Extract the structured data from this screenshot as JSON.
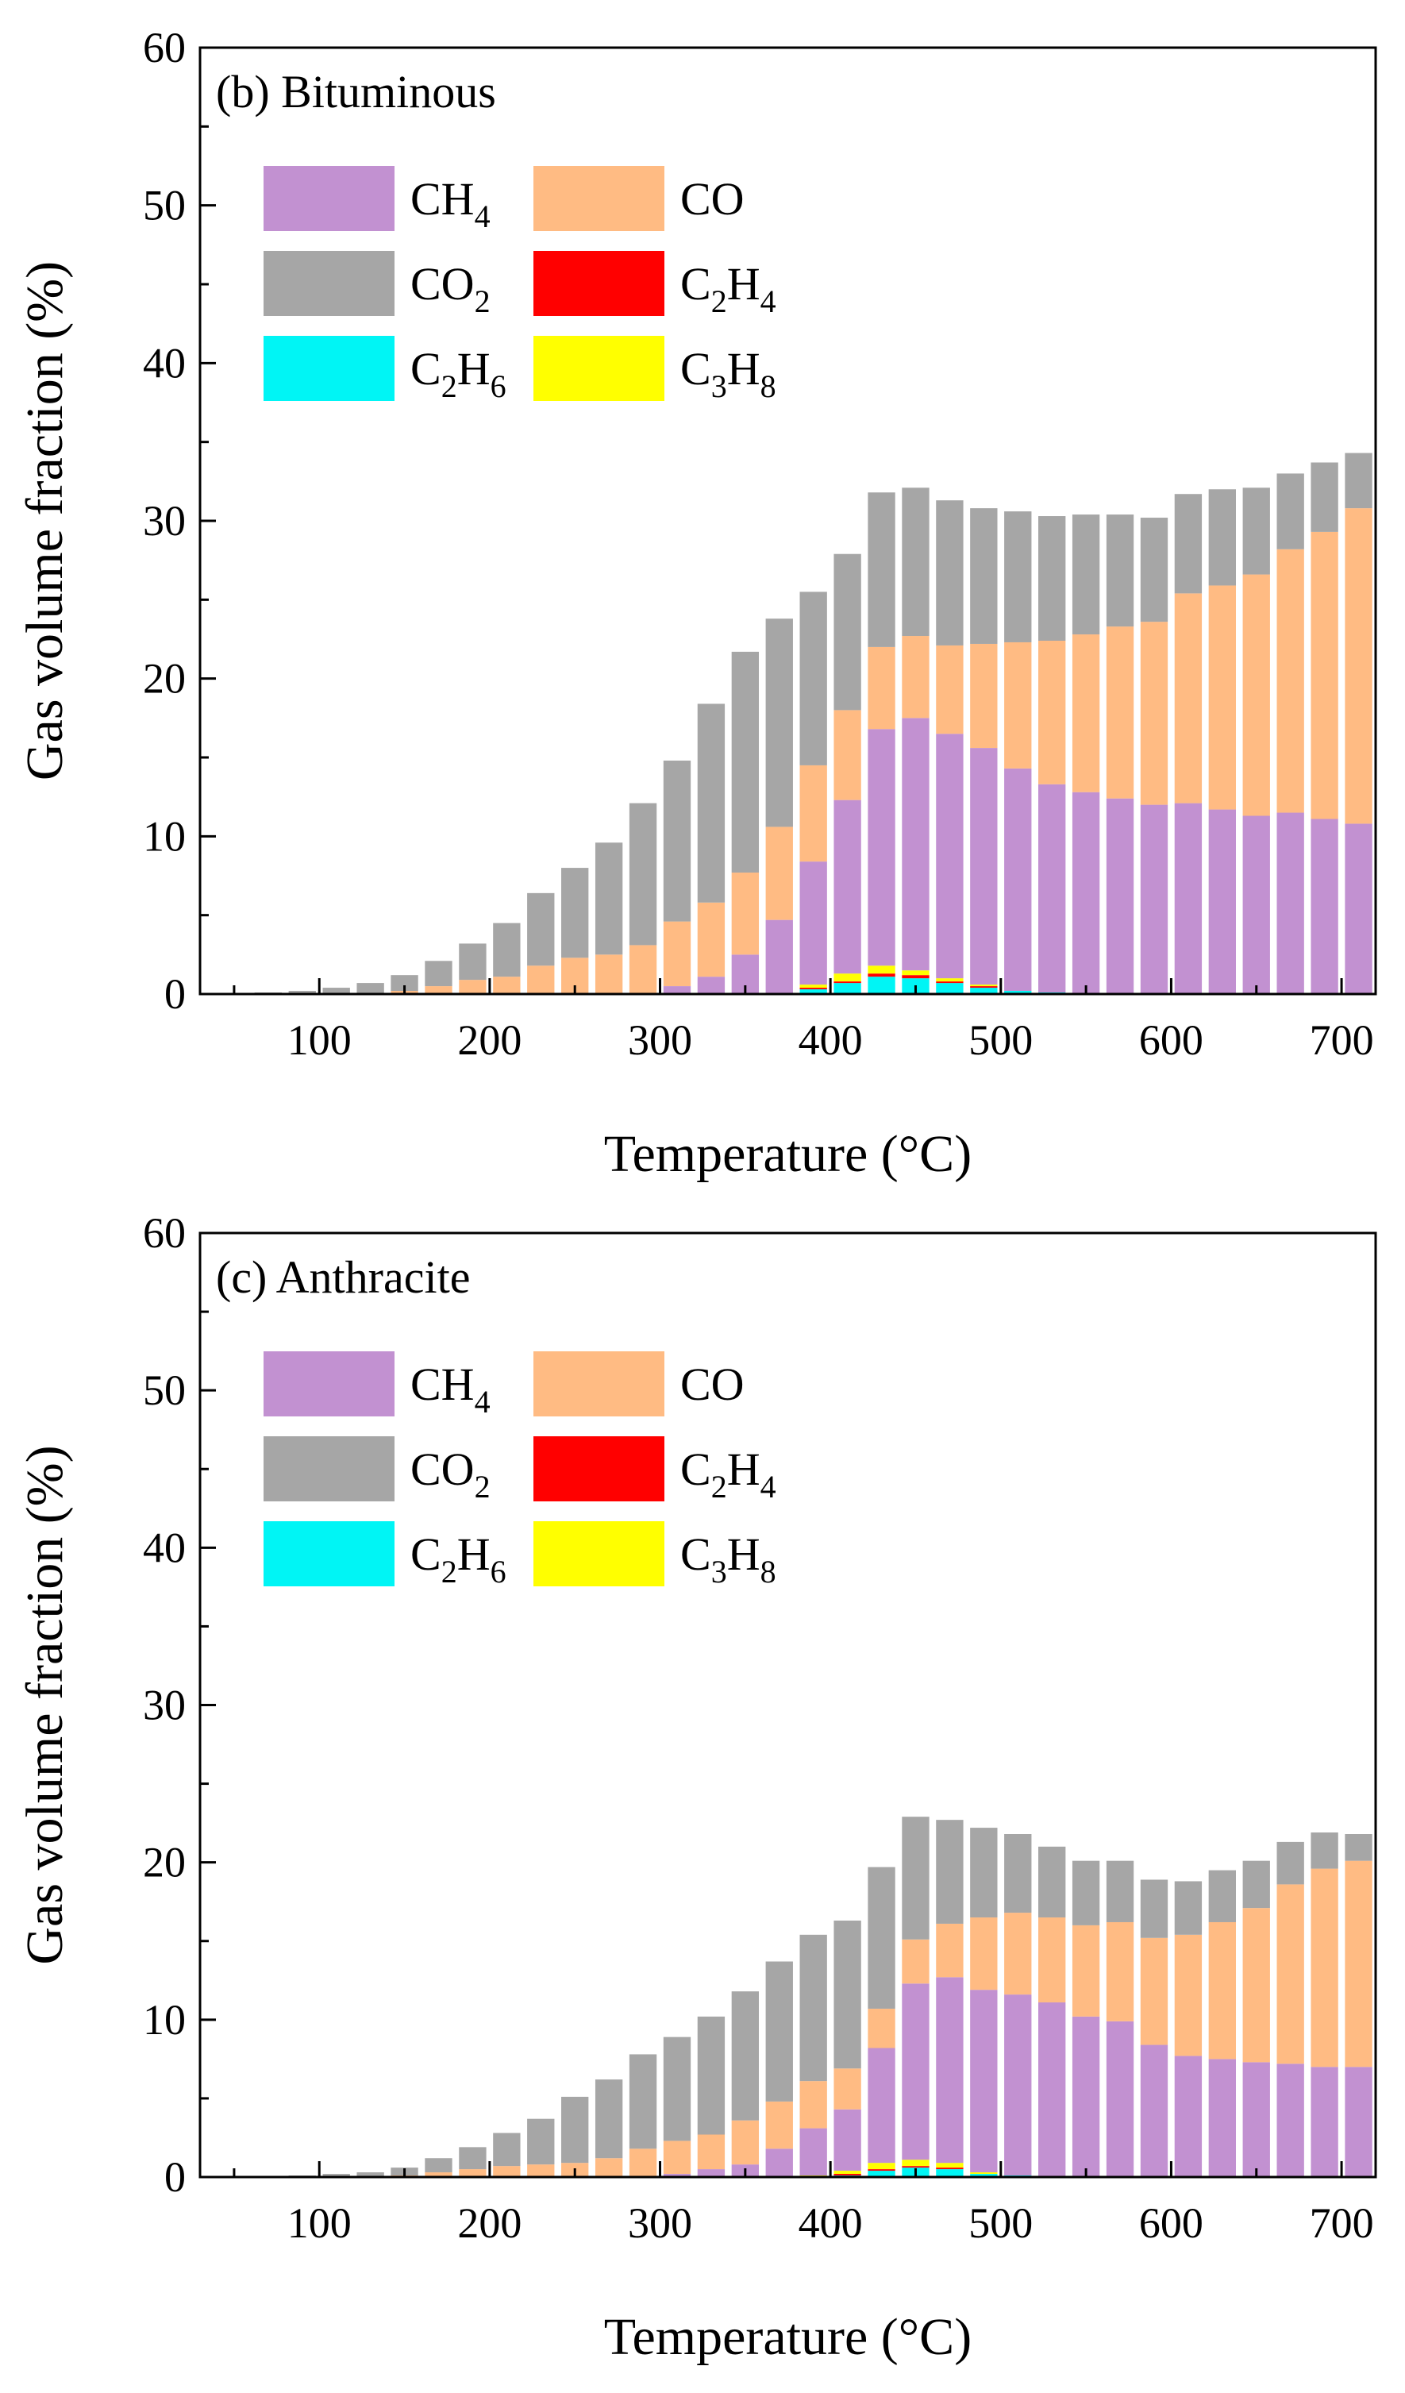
{
  "colors": {
    "CH4": "#c291d1",
    "CO": "#ffbb83",
    "CO2": "#a6a6a6",
    "C2H4": "#ff0000",
    "C2H6": "#00f5f5",
    "C3H8": "#ffff00"
  },
  "legend": {
    "items": [
      {
        "key": "CH4",
        "main": "CH",
        "sub": "4",
        "tail": ""
      },
      {
        "key": "CO",
        "main": "CO",
        "sub": "",
        "tail": ""
      },
      {
        "key": "CO2",
        "main": "CO",
        "sub": "2",
        "tail": ""
      },
      {
        "key": "C2H4",
        "main": "C",
        "sub": "2",
        "tail": "H",
        "sub2": "4"
      },
      {
        "key": "C2H6",
        "main": "C",
        "sub": "2",
        "tail": "H",
        "sub2": "6"
      },
      {
        "key": "C3H8",
        "main": "C",
        "sub": "3",
        "tail": "H",
        "sub2": "8"
      }
    ]
  },
  "chart_data": [
    {
      "type": "bar",
      "stacked": true,
      "title": "(b) Bituminous",
      "xlabel": "Temperature (°C)",
      "ylabel": "Gas volume fraction (%)",
      "xlim": [
        30,
        720
      ],
      "ylim": [
        0,
        60
      ],
      "xticks": [
        100,
        200,
        300,
        400,
        500,
        600,
        700
      ],
      "yticks": [
        0,
        10,
        20,
        30,
        40,
        50,
        60
      ],
      "x": [
        70,
        90,
        110,
        130,
        150,
        170,
        190,
        210,
        230,
        250,
        270,
        290,
        310,
        330,
        350,
        370,
        390,
        410,
        430,
        450,
        470,
        490,
        510,
        530,
        550,
        570,
        590,
        610,
        630,
        650,
        670,
        690,
        710
      ],
      "series": [
        {
          "name": "C2H6",
          "values": [
            0,
            0,
            0,
            0,
            0,
            0,
            0,
            0,
            0,
            0,
            0,
            0,
            0,
            0,
            0,
            0,
            0.3,
            0.7,
            1.1,
            1.0,
            0.7,
            0.4,
            0.2,
            0.1,
            0,
            0,
            0,
            0,
            0,
            0,
            0,
            0,
            0
          ]
        },
        {
          "name": "C2H4",
          "values": [
            0,
            0,
            0,
            0,
            0,
            0,
            0,
            0,
            0,
            0,
            0,
            0,
            0,
            0,
            0,
            0,
            0.1,
            0.1,
            0.2,
            0.2,
            0.1,
            0.1,
            0,
            0,
            0,
            0,
            0,
            0,
            0,
            0,
            0,
            0,
            0
          ]
        },
        {
          "name": "C3H8",
          "values": [
            0,
            0,
            0,
            0,
            0,
            0,
            0,
            0,
            0,
            0,
            0,
            0,
            0,
            0,
            0,
            0,
            0.2,
            0.5,
            0.5,
            0.3,
            0.2,
            0.1,
            0,
            0,
            0,
            0,
            0,
            0,
            0,
            0,
            0,
            0,
            0
          ]
        },
        {
          "name": "CH4",
          "values": [
            0,
            0,
            0,
            0,
            0,
            0,
            0,
            0,
            0,
            0,
            0,
            0,
            0.5,
            1.1,
            2.5,
            4.7,
            7.8,
            11.0,
            15.0,
            16.0,
            15.5,
            15.0,
            14.1,
            13.2,
            12.8,
            12.4,
            12.0,
            12.1,
            11.7,
            11.3,
            11.5,
            11.1,
            10.8
          ]
        },
        {
          "name": "CO",
          "values": [
            0,
            0,
            0,
            0,
            0.2,
            0.5,
            0.9,
            1.1,
            1.8,
            2.3,
            2.5,
            3.1,
            4.1,
            4.7,
            5.2,
            5.9,
            6.1,
            5.7,
            5.2,
            5.2,
            5.6,
            6.6,
            8.0,
            9.1,
            10.0,
            10.9,
            11.6,
            13.3,
            14.2,
            15.3,
            16.7,
            18.2,
            20.0
          ]
        },
        {
          "name": "CO2",
          "values": [
            0.1,
            0.2,
            0.4,
            0.7,
            1.0,
            1.6,
            2.3,
            3.4,
            4.6,
            5.7,
            7.1,
            9.0,
            10.2,
            12.6,
            14.0,
            13.2,
            11.0,
            9.9,
            9.8,
            9.4,
            9.2,
            8.6,
            8.3,
            7.9,
            7.6,
            7.1,
            6.6,
            6.3,
            6.1,
            5.5,
            4.8,
            4.4,
            3.5
          ]
        }
      ]
    },
    {
      "type": "bar",
      "stacked": true,
      "title": "(c) Anthracite",
      "xlabel": "Temperature (°C)",
      "ylabel": "Gas volume fraction (%)",
      "xlim": [
        30,
        720
      ],
      "ylim": [
        0,
        60
      ],
      "xticks": [
        100,
        200,
        300,
        400,
        500,
        600,
        700
      ],
      "yticks": [
        0,
        10,
        20,
        30,
        40,
        50,
        60
      ],
      "x": [
        70,
        90,
        110,
        130,
        150,
        170,
        190,
        210,
        230,
        250,
        270,
        290,
        310,
        330,
        350,
        370,
        390,
        410,
        430,
        450,
        470,
        490,
        510,
        530,
        550,
        570,
        590,
        610,
        630,
        650,
        670,
        690,
        710
      ],
      "series": [
        {
          "name": "C2H6",
          "values": [
            0,
            0,
            0,
            0,
            0,
            0,
            0,
            0,
            0,
            0,
            0,
            0,
            0,
            0,
            0,
            0,
            0,
            0.1,
            0.4,
            0.6,
            0.5,
            0.2,
            0.1,
            0,
            0,
            0,
            0,
            0,
            0,
            0,
            0,
            0,
            0
          ]
        },
        {
          "name": "C2H4",
          "values": [
            0,
            0,
            0,
            0,
            0,
            0,
            0,
            0,
            0,
            0,
            0,
            0,
            0,
            0,
            0,
            0,
            0,
            0.1,
            0.1,
            0.1,
            0.1,
            0,
            0,
            0,
            0,
            0,
            0,
            0,
            0,
            0,
            0,
            0,
            0
          ]
        },
        {
          "name": "C3H8",
          "values": [
            0,
            0,
            0,
            0,
            0,
            0,
            0,
            0,
            0,
            0,
            0,
            0,
            0,
            0,
            0,
            0,
            0.1,
            0.2,
            0.4,
            0.4,
            0.3,
            0.1,
            0,
            0,
            0,
            0,
            0,
            0,
            0,
            0,
            0,
            0,
            0
          ]
        },
        {
          "name": "CH4",
          "values": [
            0,
            0,
            0,
            0,
            0,
            0,
            0,
            0,
            0,
            0,
            0,
            0,
            0.2,
            0.5,
            0.8,
            1.8,
            3.0,
            3.9,
            7.3,
            11.2,
            11.8,
            11.6,
            11.5,
            11.1,
            10.2,
            9.9,
            8.4,
            7.7,
            7.5,
            7.3,
            7.2,
            7.0,
            7.0
          ]
        },
        {
          "name": "CO",
          "values": [
            0,
            0,
            0,
            0,
            0.1,
            0.3,
            0.5,
            0.7,
            0.8,
            0.9,
            1.2,
            1.8,
            2.1,
            2.2,
            2.8,
            3.0,
            3.0,
            2.6,
            2.5,
            2.8,
            3.4,
            4.6,
            5.2,
            5.4,
            5.8,
            6.3,
            6.8,
            7.7,
            8.7,
            9.8,
            11.4,
            12.6,
            13.1
          ]
        },
        {
          "name": "CO2",
          "values": [
            0.05,
            0.1,
            0.2,
            0.3,
            0.5,
            0.9,
            1.4,
            2.1,
            2.9,
            4.2,
            5.0,
            6.0,
            6.6,
            7.5,
            8.2,
            8.9,
            9.3,
            9.4,
            9.0,
            7.8,
            6.6,
            5.7,
            5.0,
            4.5,
            4.1,
            3.9,
            3.7,
            3.4,
            3.3,
            3.0,
            2.7,
            2.3,
            1.7
          ]
        }
      ]
    }
  ]
}
